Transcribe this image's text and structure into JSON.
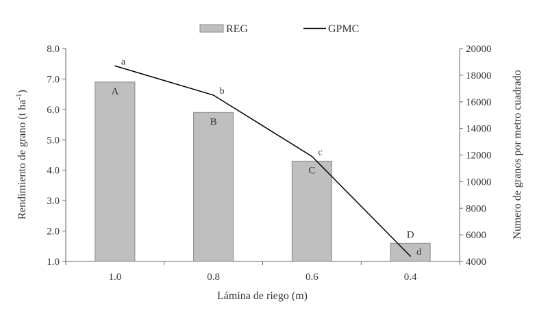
{
  "chart_data": {
    "type": "bar",
    "categories": [
      "1.0",
      "0.8",
      "0.6",
      "0.4"
    ],
    "xlabel": "Lámina de riego (m)",
    "ylabel": "Rendimiento de grano (t ha-1)",
    "ylabel_main": "Rendimiento de grano (t ha",
    "ylabel_sup": "-1",
    "ylabel_close": ")",
    "y2label": "Numero de granos por metro cuadrado",
    "ylim": [
      1.0,
      8.0
    ],
    "y2lim": [
      4000,
      20000
    ],
    "yticks": [
      "1.0",
      "2.0",
      "3.0",
      "4.0",
      "5.0",
      "6.0",
      "7.0",
      "8.0"
    ],
    "y2ticks": [
      "4000",
      "6000",
      "8000",
      "10000",
      "12000",
      "14000",
      "16000",
      "18000",
      "20000"
    ],
    "legend_position": "top",
    "series": [
      {
        "name": "REG",
        "type": "bar",
        "axis": "left",
        "color": "#bfbfbf",
        "values": [
          6.9,
          5.9,
          4.3,
          1.6
        ],
        "labels": [
          "A",
          "B",
          "C",
          "D"
        ]
      },
      {
        "name": "GPMC",
        "type": "line",
        "axis": "right",
        "color": "#000000",
        "values": [
          18700,
          16500,
          11900,
          4400
        ],
        "labels": [
          "a",
          "b",
          "c",
          "d"
        ]
      }
    ]
  }
}
